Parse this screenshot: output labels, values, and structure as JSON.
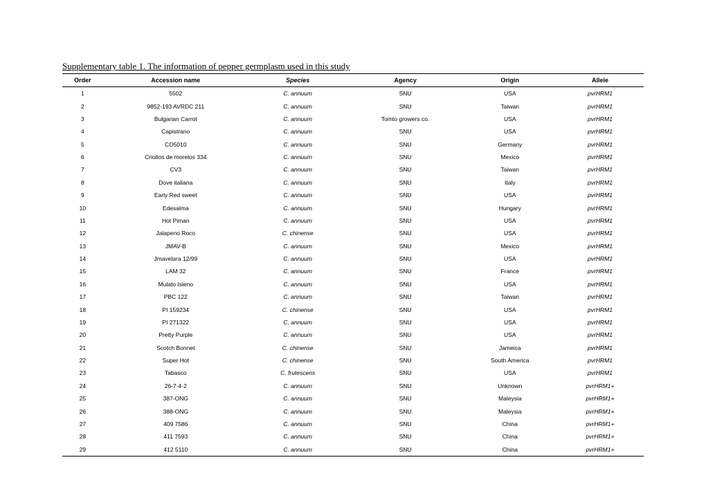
{
  "title": "Supplementary table 1. The information of pepper germplasm used in this study",
  "headers": {
    "order": "Order",
    "accession": "Accession name",
    "species": "Species",
    "agency": "Agency",
    "origin": "Origin",
    "allele": "Allele"
  },
  "rows": [
    {
      "order": "1",
      "accession": "5502",
      "species": "C. annuum",
      "agency": "SNU",
      "origin": "USA",
      "allele": "pvrHRM1"
    },
    {
      "order": "2",
      "accession": "9852-193 AVRDC 211",
      "species": "C. annuum",
      "agency": "SNU",
      "origin": "Taiwan",
      "allele": "pvrHRM1"
    },
    {
      "order": "3",
      "accession": "Bulgarian Carrot",
      "species": "C. annuum",
      "agency": "Tomto growers co.",
      "origin": "USA",
      "allele": "pvrHRM1"
    },
    {
      "order": "4",
      "accession": "Capistrano",
      "species": "C. annuum",
      "agency": "SNU",
      "origin": "USA",
      "allele": "pvrHRM1"
    },
    {
      "order": "5",
      "accession": "CO5010",
      "species": "C. annuum",
      "agency": "SNU",
      "origin": "Germany",
      "allele": "pvrHRM1"
    },
    {
      "order": "6",
      "accession": "Criollos de morelos 334",
      "species": "C. annuum",
      "agency": "SNU",
      "origin": "Mexico",
      "allele": "pvrHRM1"
    },
    {
      "order": "7",
      "accession": "CV3",
      "species": "C. annuum",
      "agency": "SNU",
      "origin": "Taiwan",
      "allele": "pvrHRM1"
    },
    {
      "order": "8",
      "accession": "Dove italiana",
      "species": "C. annuum",
      "agency": "SNU",
      "origin": "Italy",
      "allele": "pvrHRM1"
    },
    {
      "order": "9",
      "accession": "Early Red sweet",
      "species": "C. annuum",
      "agency": "SNU",
      "origin": "USA",
      "allele": "pvrHRM1"
    },
    {
      "order": "10",
      "accession": "Edesalma",
      "species": "C. annuum",
      "agency": "SNU",
      "origin": "Hungary",
      "allele": "pvrHRM1"
    },
    {
      "order": "11",
      "accession": "Hot Piman",
      "species": "C. annuum",
      "agency": "SNU",
      "origin": "USA",
      "allele": "pvrHRM1"
    },
    {
      "order": "12",
      "accession": "Jalapeno Roco",
      "species": "C. chinense",
      "agency": "SNU",
      "origin": "USA",
      "allele": "pvrHRM1"
    },
    {
      "order": "13",
      "accession": "JMAV-B",
      "species": "C. annuum",
      "agency": "SNU",
      "origin": "Mexico",
      "allele": "pvrHRM1"
    },
    {
      "order": "14",
      "accession": "Jmavelara 12/99",
      "species": "C. annuum",
      "agency": "SNU",
      "origin": "USA",
      "allele": "pvrHRM1"
    },
    {
      "order": "15",
      "accession": "LAM 32",
      "species": "C. annuum",
      "agency": "SNU",
      "origin": "France",
      "allele": "pvrHRM1"
    },
    {
      "order": "16",
      "accession": "Mulato Isleno",
      "species": "C. annuum",
      "agency": "SNU",
      "origin": "USA",
      "allele": "pvrHRM1"
    },
    {
      "order": "17",
      "accession": "PBC 122",
      "species": "C. annuum",
      "agency": "SNU",
      "origin": "Taiwan",
      "allele": "pvrHRM1"
    },
    {
      "order": "18",
      "accession": "PI 159234",
      "species": "C. chinense",
      "agency": "SNU",
      "origin": "USA",
      "allele": "pvrHRM1"
    },
    {
      "order": "19",
      "accession": "PI 271322",
      "species": "C. annuum",
      "agency": "SNU",
      "origin": "USA",
      "allele": "pvrHRM1"
    },
    {
      "order": "20",
      "accession": "Pretty Purple",
      "species": "C. annuum",
      "agency": "SNU",
      "origin": "USA",
      "allele": "pvrHRM1"
    },
    {
      "order": "21",
      "accession": "Scotch Bonnet",
      "species": "C. chinense",
      "agency": "SNU",
      "origin": "Jameica",
      "allele": "pvrHRM1"
    },
    {
      "order": "22",
      "accession": "Super Hot",
      "species": "C. chinense",
      "agency": "SNU",
      "origin": "South America",
      "allele": "pvrHRM1"
    },
    {
      "order": "23",
      "accession": "Tabasco",
      "species": "C. frutescens",
      "agency": "SNU",
      "origin": "USA",
      "allele": "pvrHRM1"
    },
    {
      "order": "24",
      "accession": "26-7-4-2",
      "species": "C. annuum",
      "agency": "SNU",
      "origin": "Unknown",
      "allele": "pvrHRM1+"
    },
    {
      "order": "25",
      "accession": "387-ONG",
      "species": "C. annuum",
      "agency": "SNU",
      "origin": "Maleysia",
      "allele": "pvrHRM1+"
    },
    {
      "order": "26",
      "accession": "388-ONG",
      "species": "C. annuum",
      "agency": "SNU",
      "origin": "Maleysia",
      "allele": "pvrHRM1+"
    },
    {
      "order": "27",
      "accession": "409 7586",
      "species": "C. annuum",
      "agency": "SNU",
      "origin": "China",
      "allele": "pvrHRM1+"
    },
    {
      "order": "28",
      "accession": "411 7593",
      "species": "C. annuum",
      "agency": "SNU",
      "origin": "China",
      "allele": "pvrHRM1+"
    },
    {
      "order": "29",
      "accession": "412 5110",
      "species": "C. annuum",
      "agency": "SNU",
      "origin": "China",
      "allele": "pvrHRM1+"
    }
  ]
}
